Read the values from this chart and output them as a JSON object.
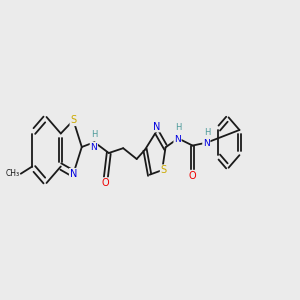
{
  "background_color": "#ebebeb",
  "figsize": [
    3.0,
    3.0
  ],
  "dpi": 100,
  "bond_color": "#1a1a1a",
  "bond_lw": 1.3,
  "atom_colors": {
    "N": "#0000e0",
    "S": "#ccaa00",
    "O": "#ee0000",
    "C": "#1a1a1a",
    "H": "#4a9999",
    "CH3": "#1a1a1a"
  },
  "xlim": [
    0,
    10
  ],
  "ylim": [
    2.5,
    7.5
  ]
}
